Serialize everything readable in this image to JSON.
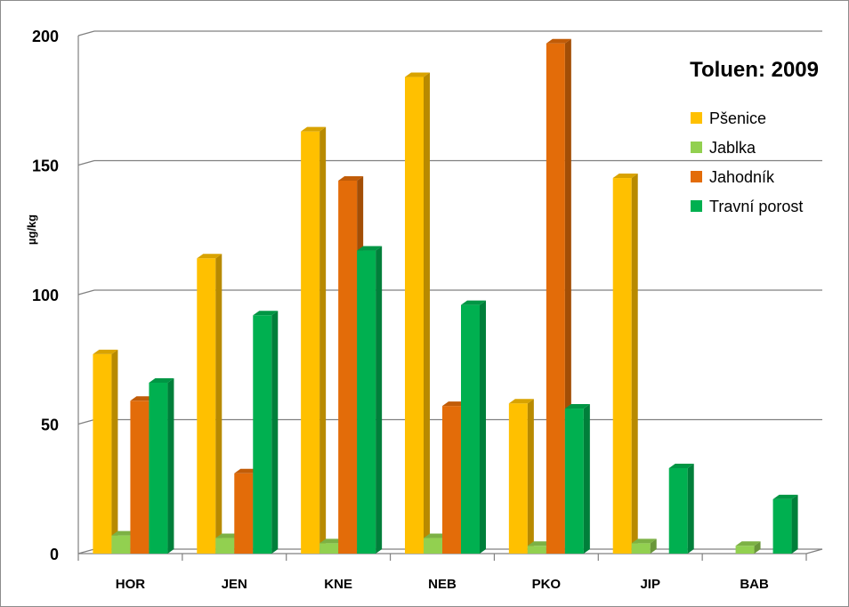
{
  "chart_data": {
    "type": "bar",
    "title": "Toluen: 2009",
    "xlabel": "",
    "ylabel": "µg/kg",
    "ylim": [
      0,
      200
    ],
    "yticks": [
      0,
      50,
      100,
      150,
      200
    ],
    "grid": true,
    "legend_position": "top-right",
    "categories": [
      "HOR",
      "JEN",
      "KNE",
      "NEB",
      "PKO",
      "JIP",
      "BAB"
    ],
    "series": [
      {
        "name": "Pšenice",
        "color": "#FFC000",
        "values": [
          77,
          114,
          163,
          184,
          58,
          145,
          null
        ]
      },
      {
        "name": "Jablka",
        "color": "#92D050",
        "values": [
          7,
          6,
          4,
          6,
          3,
          4,
          3
        ]
      },
      {
        "name": "Jahodník",
        "color": "#E36C09",
        "values": [
          59,
          31,
          144,
          57,
          197,
          null,
          null
        ]
      },
      {
        "name": "Travní porost",
        "color": "#00B050",
        "values": [
          66,
          92,
          117,
          96,
          56,
          33,
          21
        ]
      }
    ]
  }
}
